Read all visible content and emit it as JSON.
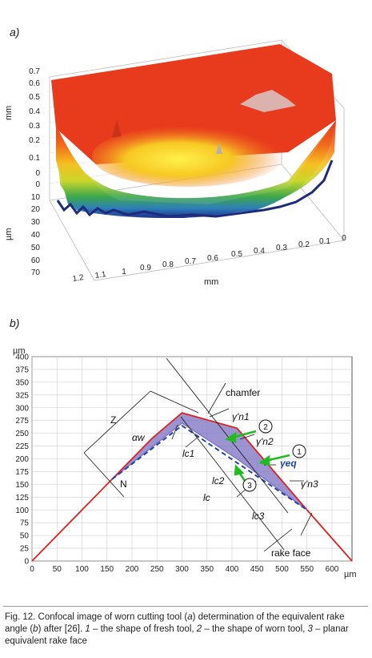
{
  "panel_a": {
    "label": "a)",
    "z_axis": {
      "unit": "mm",
      "ticks": [
        "0.7",
        "0.6",
        "0.5",
        "0.4",
        "0.3",
        "0.2",
        "0.1",
        "0"
      ]
    },
    "depth_axis": {
      "unit": "µm",
      "ticks": [
        "0",
        "10",
        "20",
        "30",
        "40",
        "50",
        "60",
        "70"
      ]
    },
    "x_axis": {
      "unit": "mm",
      "ticks": [
        "1.2",
        "1.1",
        "1",
        "0.9",
        "0.8",
        "0.7",
        "0.6",
        "0.5",
        "0.4",
        "0.3",
        "0.2",
        "0.1",
        "0"
      ]
    }
  },
  "panel_b": {
    "label": "b)",
    "y_unit": "µm",
    "x_unit": "µm",
    "annotations": {
      "chamfer": "chamfer",
      "rake_face": "rake face",
      "z": "Z",
      "n": "N",
      "alpha_w": "αw",
      "gamma_n1": "γ'n1",
      "gamma_n2": "γ'n2",
      "gamma_n3": "γ'n3",
      "gamma_eq": "γeq",
      "lc": "lc",
      "lc1": "lc1",
      "lc2": "lc2",
      "lc3": "lc3",
      "marker_1": "1",
      "marker_2": "2",
      "marker_3": "3"
    },
    "colors": {
      "fresh_tool": "#e02020",
      "worn_fill": "#7b6fc2",
      "equivalent": "#2244aa",
      "arrow": "#22bb22"
    }
  },
  "chart_data": {
    "type": "line",
    "x_ticks": [
      0,
      50,
      100,
      150,
      200,
      250,
      300,
      350,
      400,
      450,
      500,
      550,
      600
    ],
    "y_ticks": [
      0,
      25,
      50,
      75,
      100,
      125,
      150,
      175,
      200,
      225,
      250,
      275,
      300,
      325,
      350,
      375,
      400
    ],
    "xlim": [
      0,
      640
    ],
    "ylim": [
      0,
      400
    ],
    "grid": true,
    "series": [
      {
        "x": [
          0,
          240,
          300,
          410,
          550,
          640
        ],
        "y": [
          0,
          240,
          290,
          260,
          100,
          0
        ]
      },
      {
        "x": [
          160,
          300,
          410,
          550
        ],
        "y": [
          160,
          270,
          200,
          100
        ]
      },
      {
        "x": [
          160,
          300,
          550
        ],
        "y": [
          160,
          265,
          100
        ]
      }
    ]
  },
  "caption": {
    "prefix": "Fig. 12. Confocal image of worn cutting tool (",
    "a": "a",
    "mid1": ") determination of the equivalent rake angle (",
    "b": "b",
    "mid2": ") after [26]. ",
    "n1": "1",
    "t1": " – the shape of fresh tool, ",
    "n2": "2",
    "t2": " – the shape of worn tool, ",
    "n3": "3",
    "t3": " – planar equivalent rake face"
  }
}
